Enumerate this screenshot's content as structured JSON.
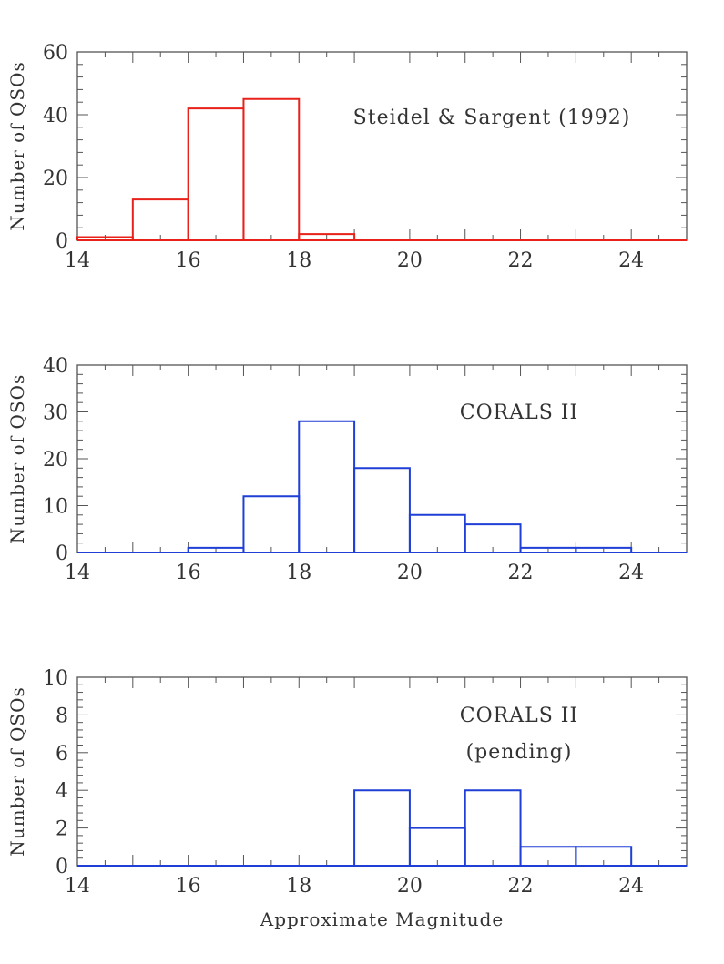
{
  "chart_data": [
    {
      "type": "bar",
      "subtype": "step-histogram",
      "annotation": [
        "Steidel & Sargent (1992)"
      ],
      "ylabel": "Number of QSOs",
      "xlabel": "",
      "xlim": [
        14,
        25
      ],
      "ylim": [
        0,
        60
      ],
      "xticks": [
        14,
        16,
        18,
        20,
        22,
        24
      ],
      "yticks": [
        0,
        20,
        40,
        60
      ],
      "bin_edges": [
        14,
        15,
        16,
        17,
        18,
        19,
        20,
        21,
        22,
        23,
        24,
        25
      ],
      "values": [
        1,
        13,
        42,
        45,
        2,
        0,
        0,
        0,
        0,
        0,
        0
      ],
      "color": "#e8211a"
    },
    {
      "type": "bar",
      "subtype": "step-histogram",
      "annotation": [
        "CORALS II"
      ],
      "ylabel": "Number of QSOs",
      "xlabel": "",
      "xlim": [
        14,
        25
      ],
      "ylim": [
        0,
        40
      ],
      "xticks": [
        14,
        16,
        18,
        20,
        22,
        24
      ],
      "yticks": [
        0,
        10,
        20,
        30,
        40
      ],
      "bin_edges": [
        14,
        15,
        16,
        17,
        18,
        19,
        20,
        21,
        22,
        23,
        24,
        25
      ],
      "values": [
        0,
        0,
        1,
        12,
        28,
        18,
        8,
        6,
        1,
        1,
        0
      ],
      "color": "#1f3fd6"
    },
    {
      "type": "bar",
      "subtype": "step-histogram",
      "annotation": [
        "CORALS II",
        "(pending)"
      ],
      "ylabel": "Number of QSOs",
      "xlabel": "Approximate Magnitude",
      "xlim": [
        14,
        25
      ],
      "ylim": [
        0,
        10
      ],
      "xticks": [
        14,
        16,
        18,
        20,
        22,
        24
      ],
      "yticks": [
        0,
        2,
        4,
        6,
        8,
        10
      ],
      "bin_edges": [
        14,
        15,
        16,
        17,
        18,
        19,
        20,
        21,
        22,
        23,
        24,
        25
      ],
      "values": [
        0,
        0,
        0,
        0,
        0,
        4,
        2,
        4,
        1,
        1,
        0
      ],
      "color": "#1f3fd6"
    }
  ]
}
